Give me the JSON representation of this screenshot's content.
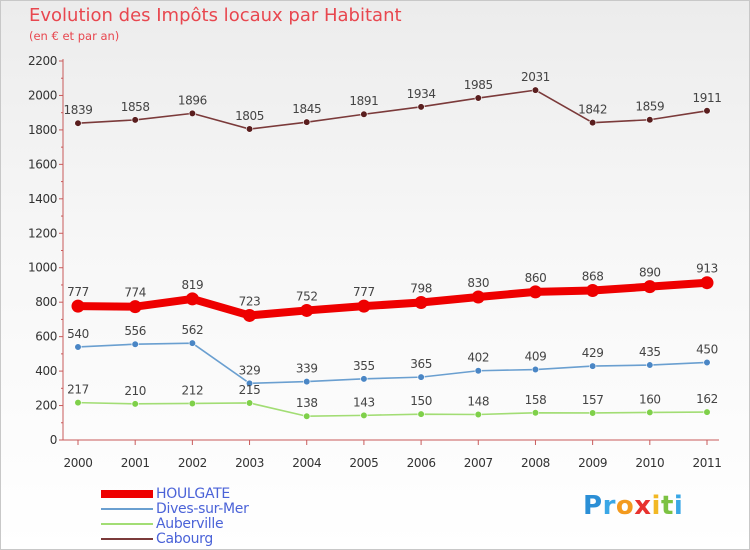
{
  "chart_data": {
    "type": "line",
    "title": "Evolution des Impôts locaux par Habitant",
    "subtitle": "(en € et par an)",
    "xlabel": "",
    "ylabel": "",
    "ylim": [
      0,
      2200
    ],
    "yticks": [
      0,
      200,
      400,
      600,
      800,
      1000,
      1200,
      1400,
      1600,
      1800,
      2000,
      2200
    ],
    "categories": [
      "2000",
      "2001",
      "2002",
      "2003",
      "2004",
      "2005",
      "2006",
      "2007",
      "2008",
      "2009",
      "2010",
      "2011"
    ],
    "series": [
      {
        "name": "HOULGATE",
        "color": "#ee0000",
        "pointColor": "#ee0000",
        "emphasis": true,
        "values": [
          777,
          774,
          819,
          723,
          752,
          777,
          798,
          830,
          860,
          868,
          890,
          913
        ]
      },
      {
        "name": "Dives-sur-Mer",
        "color": "#6a9fd0",
        "pointColor": "#4a86c5",
        "emphasis": false,
        "values": [
          540,
          556,
          562,
          329,
          339,
          355,
          365,
          402,
          409,
          429,
          435,
          450
        ]
      },
      {
        "name": "Auberville",
        "color": "#a2dd74",
        "pointColor": "#7fd04a",
        "emphasis": false,
        "values": [
          217,
          210,
          212,
          215,
          138,
          143,
          150,
          148,
          158,
          157,
          160,
          162
        ]
      },
      {
        "name": "Cabourg",
        "color": "#7b3a3a",
        "pointColor": "#5a1e1e",
        "emphasis": false,
        "values": [
          1839,
          1858,
          1896,
          1805,
          1845,
          1891,
          1934,
          1985,
          2031,
          1842,
          1859,
          1911
        ]
      }
    ],
    "legend_position": "bottom-left",
    "grid": false
  },
  "logo": {
    "letters": [
      "P",
      "r",
      "o",
      "x",
      "i",
      "t",
      "i"
    ],
    "colors": [
      "#2b8fd6",
      "#3aa7e6",
      "#f39a1e",
      "#e8322e",
      "#f2b824",
      "#7cc243",
      "#3aa7e6"
    ]
  }
}
